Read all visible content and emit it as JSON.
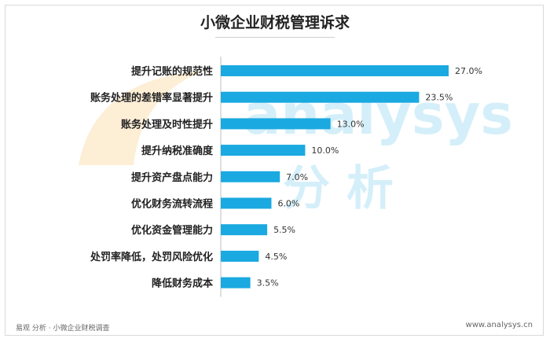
{
  "chart_data": {
    "type": "bar",
    "orientation": "horizontal",
    "title": "小微企业财税管理诉求",
    "categories": [
      "提升记账的规范性",
      "账务处理的差错率显著提升",
      "账务处理及时性提升",
      "提升纳税准确度",
      "提升资产盘点能力",
      "优化财务流转流程",
      "优化资金管理能力",
      "处罚率降低，处罚风险优化",
      "降低财务成本"
    ],
    "values": [
      27.0,
      23.5,
      13.0,
      10.0,
      7.0,
      6.0,
      5.5,
      4.5,
      3.5
    ],
    "value_labels": [
      "27.0%",
      "23.5%",
      "13.0%",
      "10.0%",
      "7.0%",
      "6.0%",
      "5.5%",
      "4.5%",
      "3.5%"
    ],
    "xlim": [
      0,
      27.0
    ],
    "bar_color": "#1aa9e0",
    "grid": false,
    "legend": "none"
  },
  "footer": {
    "source": "易观 分析 · 小微企业财税调查",
    "site": "www.analysys.cn"
  }
}
